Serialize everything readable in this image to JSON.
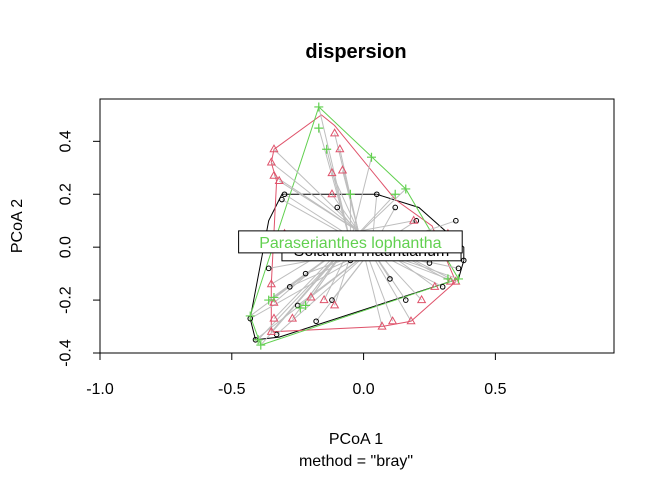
{
  "chart_data": {
    "type": "scatter",
    "title": "dispersion",
    "xlabel": "PCoA 1",
    "sublabel": "method = \"bray\"",
    "ylabel": "PCoA 2",
    "xlim": [
      -1.0,
      0.95
    ],
    "ylim": [
      -0.4,
      0.56
    ],
    "x_ticks": [
      -1.0,
      -0.5,
      0.0,
      0.5
    ],
    "x_tick_labels": [
      "-1.0",
      "-0.5",
      "0.0",
      "0.5"
    ],
    "y_ticks": [
      -0.4,
      -0.2,
      0.0,
      0.2,
      0.4
    ],
    "y_tick_labels": [
      "-0.4",
      "-0.2",
      "0.0",
      "0.2",
      "0.4"
    ],
    "grid": false,
    "colors": {
      "group1": "#000000",
      "group2": "#DF536B",
      "group3": "#61D04F",
      "spider": "#BEBEBE"
    },
    "series": [
      {
        "marker": "circle",
        "color": "#000000",
        "centroid": [
          0.03,
          -0.01
        ],
        "points": [
          [
            -0.43,
            -0.27
          ],
          [
            -0.41,
            -0.35
          ],
          [
            -0.36,
            -0.08
          ],
          [
            -0.33,
            -0.33
          ],
          [
            -0.31,
            0.18
          ],
          [
            -0.3,
            0.2
          ],
          [
            -0.28,
            -0.15
          ],
          [
            -0.25,
            -0.22
          ],
          [
            -0.27,
            0.05
          ],
          [
            -0.22,
            -0.1
          ],
          [
            -0.2,
            0.02
          ],
          [
            -0.18,
            -0.28
          ],
          [
            -0.12,
            -0.2
          ],
          [
            -0.1,
            0.15
          ],
          [
            -0.05,
            -0.05
          ],
          [
            -0.02,
            0.01
          ],
          [
            0.05,
            0.2
          ],
          [
            0.1,
            -0.12
          ],
          [
            0.16,
            -0.2
          ],
          [
            0.2,
            0.1
          ],
          [
            0.25,
            -0.06
          ],
          [
            0.3,
            -0.15
          ],
          [
            0.33,
            0.05
          ],
          [
            0.36,
            -0.08
          ],
          [
            0.38,
            -0.05
          ],
          [
            0.35,
            0.1
          ],
          [
            0.12,
            0.15
          ],
          [
            -0.15,
            0.05
          ]
        ],
        "hull": [
          [
            -0.31,
            0.2
          ],
          [
            0.05,
            0.2
          ],
          [
            0.21,
            0.15
          ],
          [
            0.38,
            0.0
          ],
          [
            0.38,
            -0.05
          ],
          [
            0.36,
            -0.12
          ],
          [
            -0.32,
            -0.34
          ],
          [
            -0.41,
            -0.35
          ],
          [
            -0.43,
            -0.27
          ],
          [
            -0.36,
            0.1
          ]
        ]
      },
      {
        "marker": "triangle",
        "color": "#DF536B",
        "centroid": [
          -0.02,
          0.06
        ],
        "points": [
          [
            -0.11,
            0.43
          ],
          [
            -0.09,
            0.37
          ],
          [
            -0.08,
            0.29
          ],
          [
            -0.12,
            0.2
          ],
          [
            -0.34,
            0.37
          ],
          [
            -0.35,
            0.32
          ],
          [
            -0.34,
            0.27
          ],
          [
            -0.32,
            0.25
          ],
          [
            -0.35,
            -0.14
          ],
          [
            -0.34,
            -0.21
          ],
          [
            -0.34,
            -0.27
          ],
          [
            -0.27,
            -0.27
          ],
          [
            -0.35,
            -0.32
          ],
          [
            -0.2,
            -0.19
          ],
          [
            -0.15,
            -0.2
          ],
          [
            -0.11,
            -0.22
          ],
          [
            0.07,
            -0.3
          ],
          [
            0.11,
            -0.28
          ],
          [
            0.18,
            -0.28
          ],
          [
            0.22,
            -0.2
          ],
          [
            0.27,
            -0.15
          ],
          [
            0.33,
            -0.13
          ],
          [
            0.35,
            -0.13
          ],
          [
            0.27,
            0.01
          ],
          [
            0.19,
            0.1
          ],
          [
            -0.12,
            0.28
          ],
          [
            -0.3,
            0.05
          ],
          [
            0.32,
            0.05
          ]
        ],
        "hull": [
          [
            -0.16,
            0.5
          ],
          [
            -0.11,
            0.46
          ],
          [
            0.12,
            0.18
          ],
          [
            0.26,
            0.08
          ],
          [
            0.35,
            -0.13
          ],
          [
            0.18,
            -0.28
          ],
          [
            0.07,
            -0.3
          ],
          [
            -0.35,
            -0.32
          ],
          [
            -0.35,
            -0.14
          ],
          [
            -0.33,
            0.25
          ],
          [
            -0.35,
            0.32
          ],
          [
            -0.34,
            0.37
          ]
        ]
      },
      {
        "marker": "plus",
        "color": "#61D04F",
        "centroid": [
          -0.05,
          0.02
        ],
        "points": [
          [
            -0.17,
            0.53
          ],
          [
            -0.17,
            0.45
          ],
          [
            -0.14,
            0.37
          ],
          [
            0.03,
            0.34
          ],
          [
            0.12,
            0.2
          ],
          [
            0.16,
            0.22
          ],
          [
            -0.43,
            -0.26
          ],
          [
            -0.4,
            -0.35
          ],
          [
            -0.39,
            -0.37
          ],
          [
            -0.36,
            -0.2
          ],
          [
            -0.34,
            -0.19
          ],
          [
            -0.24,
            -0.23
          ],
          [
            -0.22,
            -0.22
          ],
          [
            0.32,
            -0.12
          ],
          [
            0.36,
            -0.12
          ],
          [
            -0.05,
            0.2
          ]
        ],
        "hull": [
          [
            -0.17,
            0.53
          ],
          [
            0.16,
            0.22
          ],
          [
            0.36,
            -0.12
          ],
          [
            -0.39,
            -0.37
          ],
          [
            -0.43,
            -0.26
          ]
        ]
      }
    ],
    "labels": [
      {
        "text": "Paraserianthes lophantha",
        "color": "#61D04F",
        "x": -0.05,
        "y": 0.02
      },
      {
        "text": "Solanum mauritianum",
        "color": "#000000",
        "x": 0.03,
        "y": -0.01
      },
      {
        "text": "",
        "color": "#DF536B",
        "x": -0.02,
        "y": 0.06
      }
    ]
  }
}
